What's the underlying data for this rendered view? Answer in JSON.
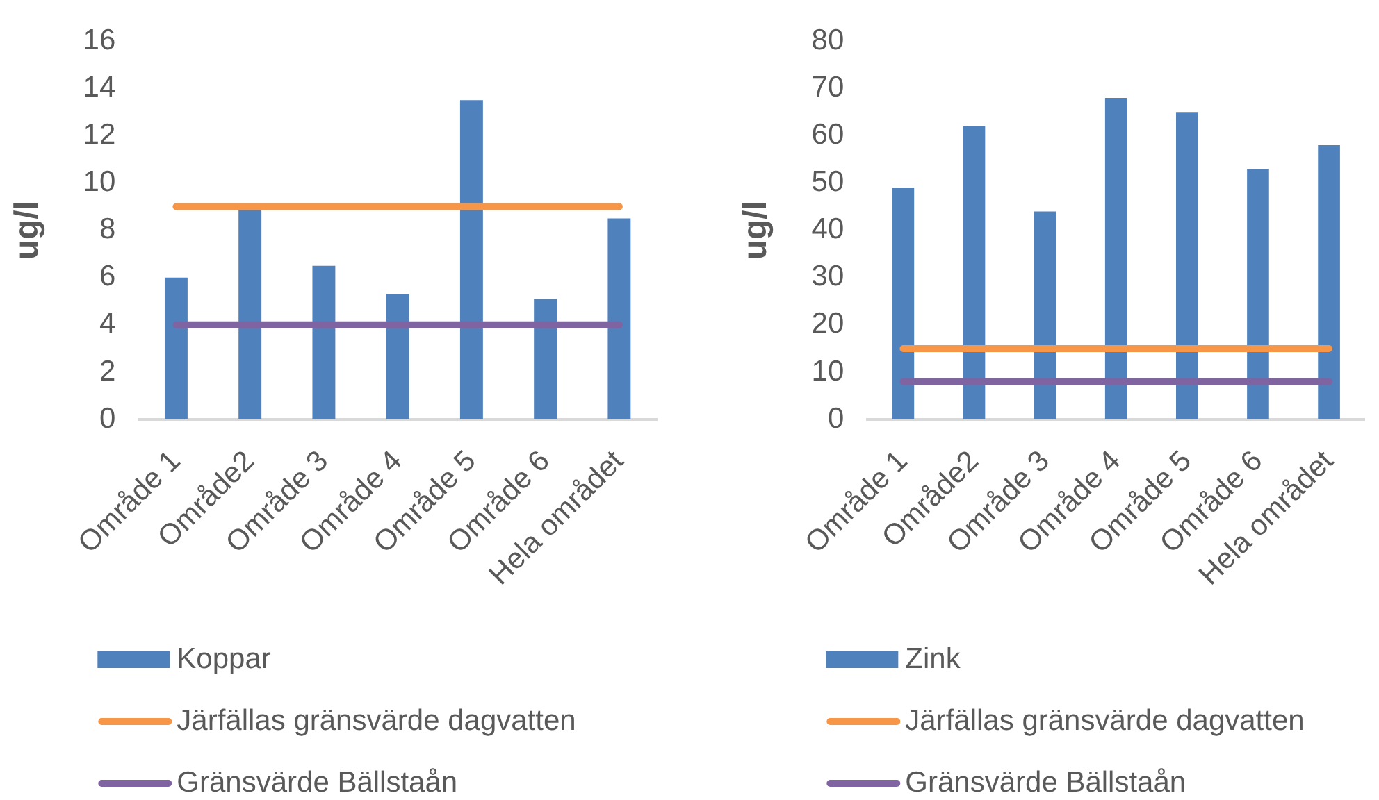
{
  "chart_data": [
    {
      "type": "bar",
      "ylabel": "ug/l",
      "categories": [
        "Område 1",
        "Område2",
        "Område 3",
        "Område 4",
        "Område 5",
        "Område 6",
        "Hela området"
      ],
      "series": [
        {
          "name": "Koppar",
          "color": "#4f81bd",
          "values": [
            6.0,
            8.9,
            6.5,
            5.3,
            13.5,
            5.1,
            8.5
          ]
        },
        {
          "name": "Järfällas gränsvärde dagvatten",
          "type": "line",
          "color": "#f79646",
          "values": [
            9,
            9,
            9,
            9,
            9,
            9,
            9
          ]
        },
        {
          "name": "Gränsvärde Bällstaån",
          "type": "line",
          "color": "#8064a2",
          "values": [
            4,
            4,
            4,
            4,
            4,
            4,
            4
          ]
        }
      ],
      "ylim": [
        0,
        16
      ],
      "yticks": [
        0,
        2,
        4,
        6,
        8,
        10,
        12,
        14,
        16
      ],
      "grid": false,
      "legend": "bottom",
      "marker": "none"
    },
    {
      "type": "bar",
      "ylabel": "ug/l",
      "categories": [
        "Område 1",
        "Område2",
        "Område 3",
        "Område 4",
        "Område 5",
        "Område 6",
        "Hela området"
      ],
      "series": [
        {
          "name": "Zink",
          "color": "#4f81bd",
          "values": [
            49,
            62,
            44,
            68,
            65,
            53,
            58
          ]
        },
        {
          "name": "Järfällas gränsvärde dagvatten",
          "type": "line",
          "color": "#f79646",
          "values": [
            15,
            15,
            15,
            15,
            15,
            15,
            15
          ]
        },
        {
          "name": "Gränsvärde Bällstaån",
          "type": "line",
          "color": "#8064a2",
          "values": [
            8,
            8,
            8,
            8,
            8,
            8,
            8
          ]
        }
      ],
      "ylim": [
        0,
        80
      ],
      "yticks": [
        0,
        10,
        20,
        30,
        40,
        50,
        60,
        70,
        80
      ],
      "grid": false,
      "legend": "bottom",
      "marker": "none"
    }
  ]
}
